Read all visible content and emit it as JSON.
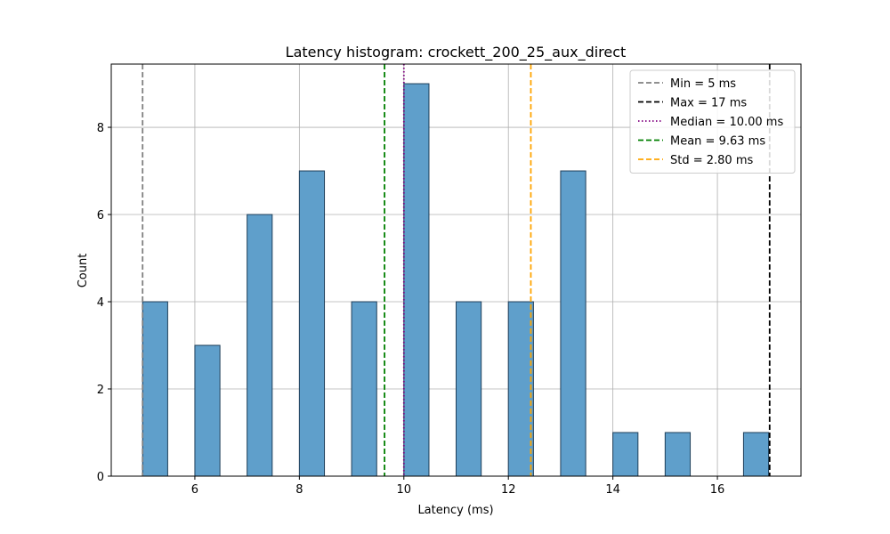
{
  "chart_data": {
    "type": "bar",
    "title": "Latency histogram: crockett_200_25_aux_direct",
    "xlabel": "Latency (ms)",
    "ylabel": "Count",
    "xlim": [
      4.4,
      17.6
    ],
    "ylim": [
      0,
      9.45
    ],
    "xticks": [
      6,
      8,
      10,
      12,
      14,
      16
    ],
    "yticks": [
      0,
      2,
      4,
      6,
      8
    ],
    "grid": true,
    "bin_width": 0.48,
    "bins": [
      {
        "x": 5.0,
        "count": 4
      },
      {
        "x": 6.0,
        "count": 3
      },
      {
        "x": 7.0,
        "count": 6
      },
      {
        "x": 8.0,
        "count": 7
      },
      {
        "x": 9.0,
        "count": 4
      },
      {
        "x": 10.0,
        "count": 9
      },
      {
        "x": 11.0,
        "count": 4
      },
      {
        "x": 12.0,
        "count": 4
      },
      {
        "x": 13.0,
        "count": 7
      },
      {
        "x": 14.0,
        "count": 1
      },
      {
        "x": 15.0,
        "count": 1
      },
      {
        "x": 16.5,
        "count": 1
      }
    ],
    "bar_color": "#5f9fcb",
    "bar_edge_color": "#1f3f5a",
    "reference_lines": [
      {
        "name": "Min = 5 ms",
        "x": 5.0,
        "color": "#808080",
        "style": "dashed"
      },
      {
        "name": "Max = 17 ms",
        "x": 17.0,
        "color": "#000000",
        "style": "dashed"
      },
      {
        "name": "Median = 10.00 ms",
        "x": 10.0,
        "color": "#800080",
        "style": "dotted"
      },
      {
        "name": "Mean = 9.63 ms",
        "x": 9.63,
        "color": "#008000",
        "style": "dashed"
      },
      {
        "name": "Std = 2.80 ms",
        "x": 12.43,
        "color": "#ffa500",
        "style": "dashed"
      }
    ],
    "legend_position": "top-right"
  }
}
